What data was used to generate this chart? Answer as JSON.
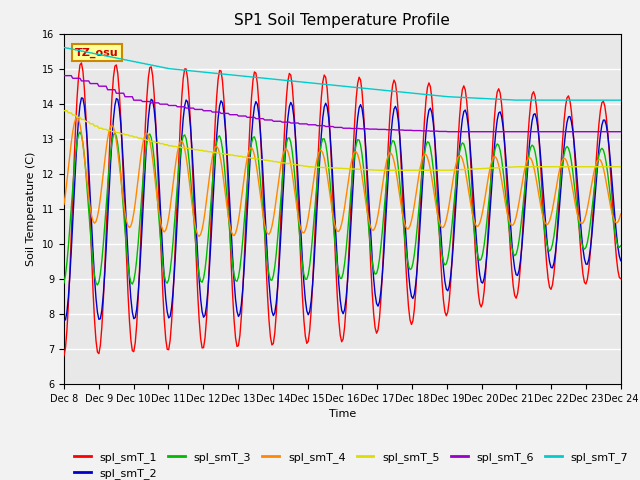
{
  "title": "SP1 Soil Temperature Profile",
  "xlabel": "Time",
  "ylabel": "Soil Temperature (C)",
  "ylim": [
    6.0,
    16.0
  ],
  "yticks": [
    6.0,
    7.0,
    8.0,
    9.0,
    10.0,
    11.0,
    12.0,
    13.0,
    14.0,
    15.0,
    16.0
  ],
  "series_colors": {
    "spl_smT_1": "#ff0000",
    "spl_smT_2": "#0000cc",
    "spl_smT_3": "#00bb00",
    "spl_smT_4": "#ff8800",
    "spl_smT_5": "#dddd00",
    "spl_smT_6": "#9900cc",
    "spl_smT_7": "#00cccc"
  },
  "annotation_text": "TZ_osu",
  "annotation_color": "#cc0000",
  "annotation_bg": "#ffff99",
  "annotation_border": "#cc8800",
  "plot_bg": "#e8e8e8",
  "fig_bg": "#f2f2f2",
  "grid_color": "#ffffff",
  "tick_fontsize": 7,
  "title_fontsize": 11,
  "label_fontsize": 8,
  "legend_fontsize": 8,
  "lw": 1.0,
  "n_points": 384,
  "n_days": 16,
  "start_day": 8
}
